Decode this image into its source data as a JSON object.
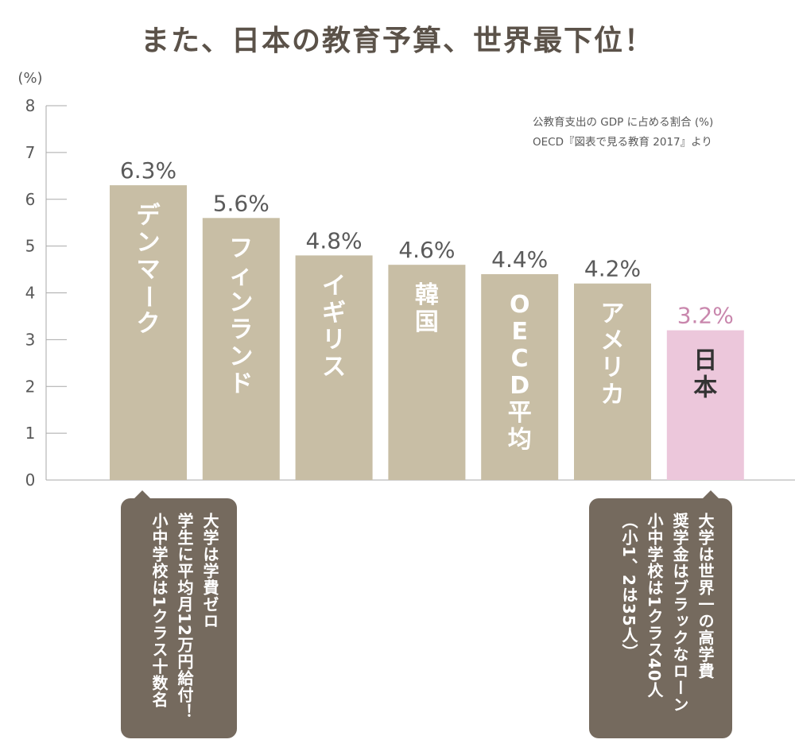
{
  "title": "また、日本の教育予算、世界最下位！",
  "chart_data": {
    "type": "bar",
    "unit_label": "(%)",
    "ylim": [
      0,
      8
    ],
    "yticks": [
      "0",
      "1",
      "2",
      "3",
      "4",
      "5",
      "6",
      "7",
      "8"
    ],
    "categories": [
      "デンマーク",
      "フィンランド",
      "イギリス",
      "韓国",
      "OECD平均",
      "アメリカ",
      "日本"
    ],
    "values": [
      6.3,
      5.6,
      4.8,
      4.6,
      4.4,
      4.2,
      3.2
    ],
    "value_labels": [
      "6.3%",
      "5.6%",
      "4.8%",
      "4.6%",
      "4.4%",
      "4.2%",
      "3.2%"
    ],
    "highlight_index": 6,
    "colors": {
      "bar": "#c8bea5",
      "highlight_bar": "#ecc7db",
      "value_text": "#5a5a5a",
      "highlight_text": "#c987ad",
      "axis": "#a9a9a9"
    },
    "source_lines": [
      "公教育支出の GDP に占める割合 (%)",
      "OECD『図表で見る教育 2017』より"
    ]
  },
  "callouts": [
    {
      "name": "denmark",
      "text": "大学は学費ゼロ\n学生に平均月12万円給付！\n小中学校は1クラス十数名"
    },
    {
      "name": "japan",
      "text": "大学は世界一の高学費\n奨学金はブラックなローン\n小中学校は1クラス40人\n（小1、2は35人）"
    }
  ]
}
